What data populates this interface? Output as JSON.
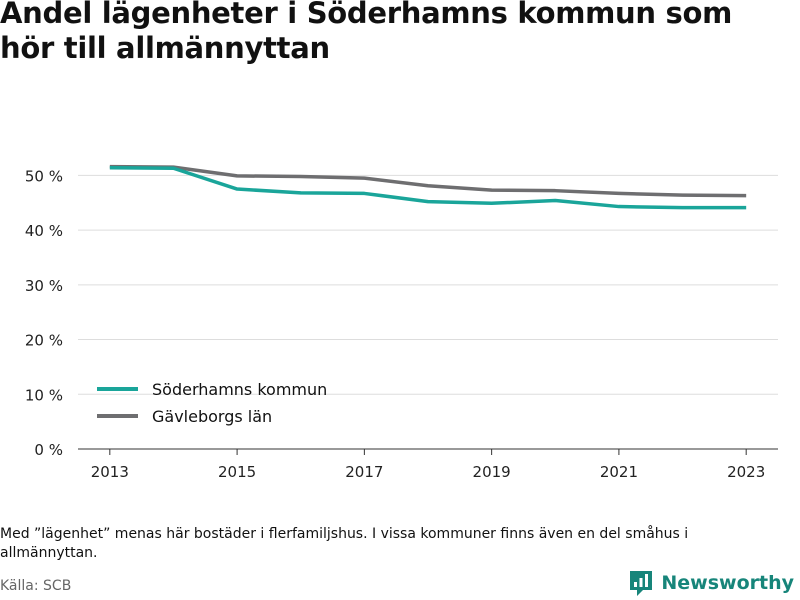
{
  "title": "Andel lägenheter i Söderhamns kommun som hör till allmännyttan",
  "footnote": "Med ”lägenhet” menas här bostäder i flerfamiljshus. I vissa kommuner finns även en del småhus i allmännyttan.",
  "source": "Källa: SCB",
  "brand": "Newsworthy",
  "colors": {
    "brand": "#17857a",
    "grid": "#dddddd",
    "axis": "#333333"
  },
  "chart_data": {
    "type": "line",
    "title": "Andel lägenheter i Söderhamns kommun som hör till allmännyttan",
    "xlabel": "",
    "ylabel": "",
    "x": [
      2013,
      2014,
      2015,
      2016,
      2017,
      2018,
      2019,
      2020,
      2021,
      2022,
      2023
    ],
    "xticks": [
      2013,
      2015,
      2017,
      2019,
      2021,
      2023
    ],
    "xlim": [
      2012.5,
      2023.5
    ],
    "yticks": [
      0,
      10,
      20,
      30,
      40,
      50
    ],
    "ytick_labels": [
      "0 %",
      "10 %",
      "20 %",
      "30 %",
      "40 %",
      "50 %"
    ],
    "ylim": [
      0,
      55
    ],
    "grid": "horizontal",
    "legend_position": "bottom-left",
    "series": [
      {
        "name": "Söderhamns kommun",
        "color": "#1aa59a",
        "values": [
          51.4,
          51.3,
          47.5,
          46.8,
          46.7,
          45.2,
          44.9,
          45.4,
          44.3,
          44.1,
          44.1
        ]
      },
      {
        "name": "Gävleborgs län",
        "color": "#6e6e70",
        "values": [
          51.6,
          51.5,
          49.9,
          49.8,
          49.5,
          48.1,
          47.3,
          47.2,
          46.7,
          46.4,
          46.3
        ]
      }
    ]
  }
}
